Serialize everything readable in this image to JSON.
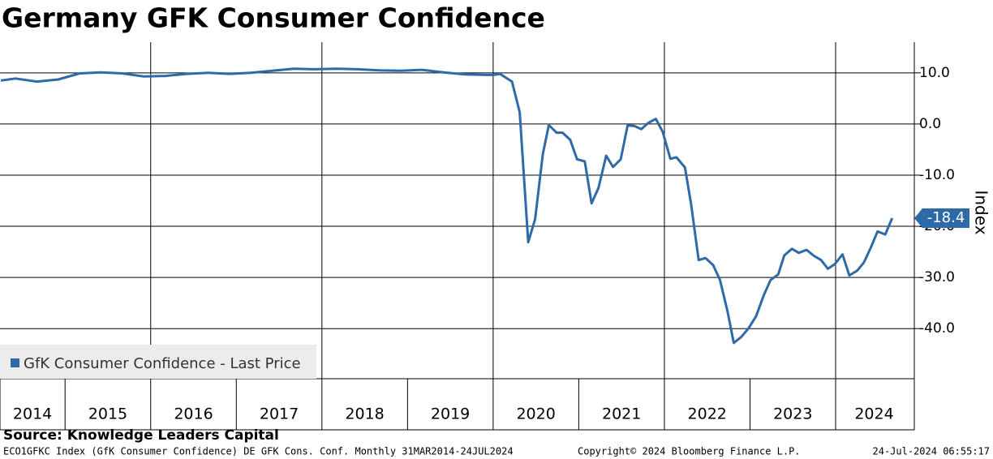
{
  "chart_data": {
    "type": "line",
    "title": "Germany GFK Consumer Confidence",
    "y_label": "Index",
    "x": [
      2014.25,
      2014.42,
      2014.67,
      2014.92,
      2015.17,
      2015.42,
      2015.67,
      2015.92,
      2016.17,
      2016.42,
      2016.67,
      2016.92,
      2017.17,
      2017.42,
      2017.67,
      2017.92,
      2018.17,
      2018.42,
      2018.67,
      2018.92,
      2019.17,
      2019.42,
      2019.67,
      2019.92,
      2020.0,
      2020.08,
      2020.22,
      2020.31,
      2020.41,
      2020.49,
      2020.58,
      2020.65,
      2020.74,
      2020.81,
      2020.9,
      2020.98,
      2021.07,
      2021.15,
      2021.23,
      2021.32,
      2021.4,
      2021.49,
      2021.57,
      2021.65,
      2021.73,
      2021.81,
      2021.9,
      2021.98,
      2022.07,
      2022.14,
      2022.24,
      2022.31,
      2022.4,
      2022.48,
      2022.57,
      2022.65,
      2022.74,
      2022.81,
      2022.9,
      2022.98,
      2023.07,
      2023.16,
      2023.24,
      2023.33,
      2023.4,
      2023.49,
      2023.57,
      2023.66,
      2023.74,
      2023.83,
      2023.91,
      2023.99,
      2024.08,
      2024.16,
      2024.25,
      2024.33,
      2024.41,
      2024.49,
      2024.58,
      2024.66
    ],
    "series": [
      {
        "name": "GfK Consumer Confidence - Last Price",
        "color": "#2e6aa8",
        "values": [
          8.5,
          8.9,
          8.3,
          8.7,
          9.9,
          10.1,
          9.9,
          9.3,
          9.4,
          9.8,
          10.0,
          9.8,
          10.0,
          10.4,
          10.8,
          10.7,
          10.8,
          10.7,
          10.5,
          10.4,
          10.6,
          10.1,
          9.7,
          9.6,
          9.6,
          9.8,
          8.3,
          2.3,
          -23.1,
          -18.6,
          -5.9,
          -0.2,
          -1.7,
          -1.7,
          -3.1,
          -6.9,
          -7.3,
          -15.5,
          -12.5,
          -6.2,
          -8.4,
          -6.9,
          -0.3,
          -0.4,
          -1.0,
          0.2,
          1.0,
          -1.5,
          -6.8,
          -6.5,
          -8.5,
          -15.5,
          -26.6,
          -26.2,
          -27.6,
          -30.5,
          -36.8,
          -42.8,
          -41.6,
          -40.0,
          -37.6,
          -33.5,
          -30.5,
          -29.4,
          -25.7,
          -24.4,
          -25.2,
          -24.6,
          -25.7,
          -26.6,
          -28.3,
          -27.4,
          -25.5,
          -29.6,
          -28.7,
          -27.1,
          -24.2,
          -21.0,
          -21.6,
          -18.4
        ]
      }
    ],
    "xlim": [
      2014.24,
      2024.9
    ],
    "xticks": [
      2016,
      2018,
      2020,
      2022,
      2024
    ],
    "year_labels": [
      "2014",
      "2015",
      "2016",
      "2017",
      "2018",
      "2019",
      "2020",
      "2021",
      "2022",
      "2023",
      "2024"
    ],
    "ylim": [
      -49.8,
      16
    ],
    "yticks": [
      {
        "value": 10,
        "label": "10.0"
      },
      {
        "value": 0,
        "label": "0.0"
      },
      {
        "value": -10,
        "label": "-10.0"
      },
      {
        "value": -20,
        "label": "-20.0"
      },
      {
        "value": -30,
        "label": "-30.0"
      },
      {
        "value": -40,
        "label": "-40.0"
      }
    ],
    "grid": true,
    "legend": "lower left"
  },
  "footer": {
    "source": "Source: Knowledge Leaders Capital",
    "ticker": "ECO1GFKC Index (GfK Consumer Confidence) DE GFK Cons. Conf.  Monthly 31MAR2014-24JUL2024",
    "copyright": "Copyright© 2024 Bloomberg Finance L.P.",
    "timestamp": "24-Jul-2024 06:55:17"
  }
}
